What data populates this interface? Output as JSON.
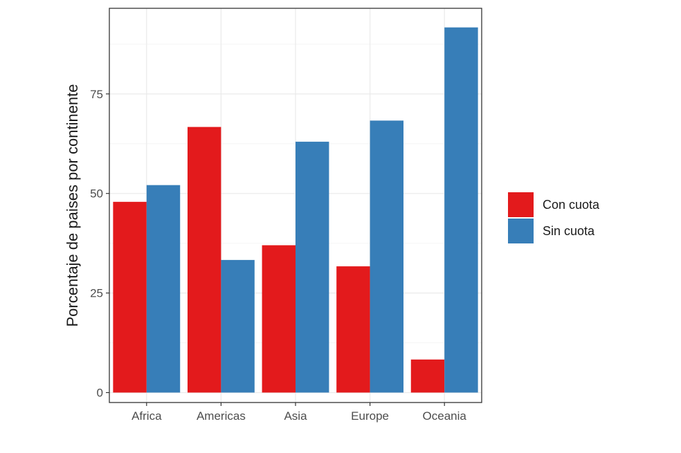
{
  "chart_data": {
    "type": "bar",
    "title": "",
    "xlabel": "",
    "ylabel": "Porcentaje de paises por continente",
    "categories": [
      "Africa",
      "Americas",
      "Asia",
      "Europe",
      "Oceania"
    ],
    "series": [
      {
        "name": "Con cuota",
        "color": "#e31a1c",
        "values": [
          47.9,
          66.7,
          37.0,
          31.7,
          8.3
        ]
      },
      {
        "name": "Sin cuota",
        "color": "#377eb8",
        "values": [
          52.1,
          33.3,
          63.0,
          68.3,
          91.7
        ]
      }
    ],
    "ylim": [
      -2.5,
      96.5
    ],
    "yticks": [
      0,
      25,
      50,
      75
    ],
    "ytick_labels": [
      "0",
      "25",
      "50",
      "75"
    ],
    "grid": true,
    "legend_position": "right",
    "colors": {
      "panel_border": "#333333",
      "grid_major": "#ebebeb",
      "grid_minor": "#f5f5f5",
      "tick_text": "#4d4d4d"
    }
  }
}
